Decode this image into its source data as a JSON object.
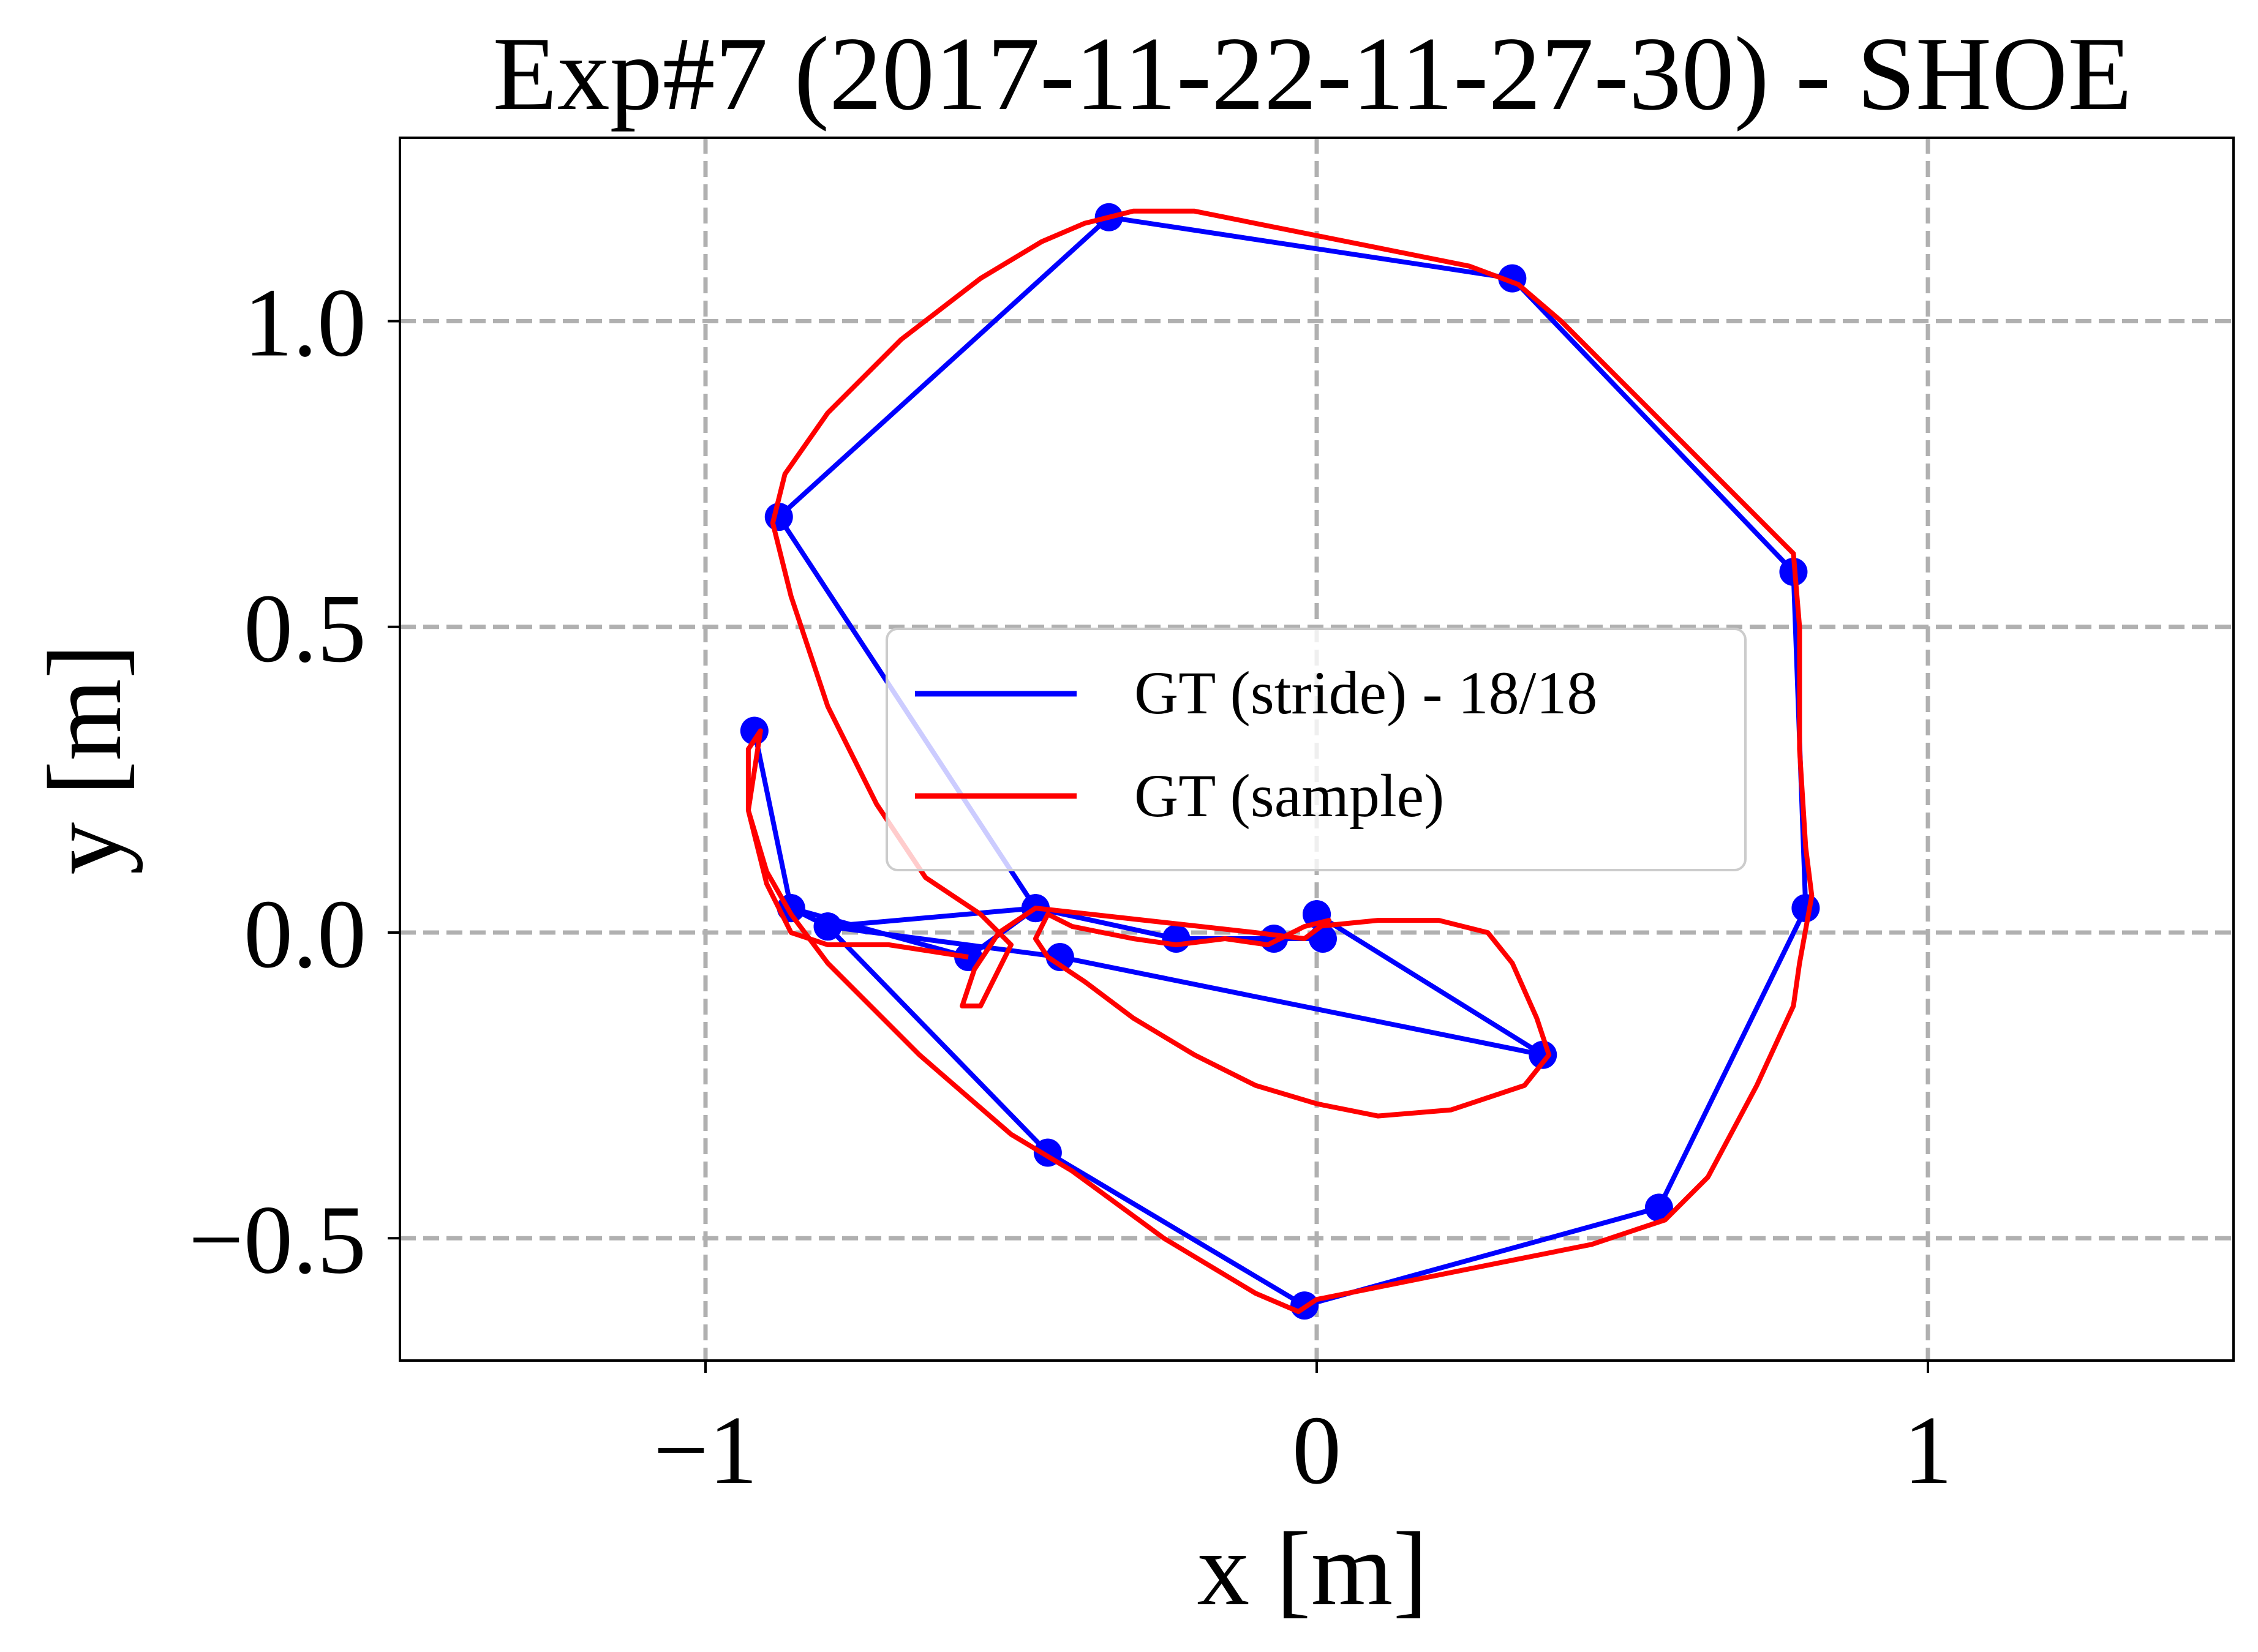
{
  "chart_data": {
    "type": "line",
    "title": "Exp#7 (2017-11-22-11-27-30) - SHOE",
    "xlabel": "x [m]",
    "ylabel": "y [m]",
    "xlim": [
      -1.5,
      1.5
    ],
    "ylim": [
      -0.7,
      1.3
    ],
    "x_ticks": [
      -1,
      0,
      1
    ],
    "x_tick_labels": [
      "−1",
      "0",
      "1"
    ],
    "y_ticks": [
      -0.5,
      0.0,
      0.5,
      1.0
    ],
    "y_tick_labels": [
      "−0.5",
      "0.0",
      "0.5",
      "1.0"
    ],
    "grid": true,
    "legend_position": "center",
    "series": [
      {
        "name": "GT (stride) - 18/18",
        "color": "#0000ff",
        "marker": "circle",
        "points": [
          [
            0.0,
            0.03
          ],
          [
            0.01,
            -0.01
          ],
          [
            -0.07,
            -0.01
          ],
          [
            -0.23,
            -0.01
          ],
          [
            -0.46,
            0.04
          ],
          [
            -0.8,
            0.01
          ],
          [
            -0.86,
            0.04
          ],
          [
            -0.92,
            0.33
          ],
          [
            -0.86,
            0.04
          ],
          [
            -0.57,
            -0.04
          ],
          [
            -0.46,
            0.04
          ],
          [
            -0.88,
            0.68
          ],
          [
            -0.34,
            1.17
          ],
          [
            0.32,
            1.07
          ],
          [
            0.78,
            0.59
          ],
          [
            0.8,
            0.04
          ],
          [
            0.56,
            -0.45
          ],
          [
            -0.02,
            -0.61
          ],
          [
            -0.44,
            -0.36
          ],
          [
            -0.8,
            0.01
          ],
          [
            -0.42,
            -0.04
          ],
          [
            0.37,
            -0.2
          ],
          [
            0.0,
            0.03
          ]
        ]
      },
      {
        "name": "GT (sample)",
        "color": "#ff0000",
        "points": [
          [
            0.0,
            0.01
          ],
          [
            0.1,
            0.02
          ],
          [
            0.2,
            0.02
          ],
          [
            0.28,
            0.0
          ],
          [
            0.32,
            -0.05
          ],
          [
            0.36,
            -0.14
          ],
          [
            0.38,
            -0.2
          ],
          [
            0.34,
            -0.25
          ],
          [
            0.22,
            -0.29
          ],
          [
            0.1,
            -0.3
          ],
          [
            0.0,
            -0.28
          ],
          [
            -0.1,
            -0.25
          ],
          [
            -0.2,
            -0.2
          ],
          [
            -0.3,
            -0.14
          ],
          [
            -0.38,
            -0.08
          ],
          [
            -0.44,
            -0.04
          ],
          [
            -0.46,
            -0.01
          ],
          [
            -0.44,
            0.03
          ],
          [
            -0.4,
            0.01
          ],
          [
            -0.3,
            -0.01
          ],
          [
            -0.23,
            -0.02
          ],
          [
            -0.15,
            -0.01
          ],
          [
            -0.08,
            -0.02
          ],
          [
            -0.02,
            0.01
          ],
          [
            0.02,
            0.02
          ],
          [
            -0.02,
            -0.01
          ],
          [
            -0.1,
            0.0
          ],
          [
            -0.46,
            0.04
          ],
          [
            -0.52,
            0.0
          ],
          [
            -0.56,
            -0.06
          ],
          [
            -0.58,
            -0.12
          ],
          [
            -0.55,
            -0.12
          ],
          [
            -0.5,
            -0.02
          ],
          [
            -0.55,
            0.03
          ],
          [
            -0.64,
            0.09
          ],
          [
            -0.72,
            0.21
          ],
          [
            -0.8,
            0.37
          ],
          [
            -0.86,
            0.55
          ],
          [
            -0.89,
            0.67
          ],
          [
            -0.87,
            0.75
          ],
          [
            -0.8,
            0.85
          ],
          [
            -0.68,
            0.97
          ],
          [
            -0.55,
            1.07
          ],
          [
            -0.45,
            1.13
          ],
          [
            -0.38,
            1.16
          ],
          [
            -0.3,
            1.18
          ],
          [
            -0.2,
            1.18
          ],
          [
            -0.05,
            1.15
          ],
          [
            0.1,
            1.12
          ],
          [
            0.25,
            1.09
          ],
          [
            0.33,
            1.06
          ],
          [
            0.4,
            1.0
          ],
          [
            0.5,
            0.9
          ],
          [
            0.62,
            0.78
          ],
          [
            0.72,
            0.68
          ],
          [
            0.78,
            0.62
          ],
          [
            0.79,
            0.5
          ],
          [
            0.79,
            0.3
          ],
          [
            0.8,
            0.14
          ],
          [
            0.81,
            0.06
          ],
          [
            0.79,
            -0.05
          ],
          [
            0.78,
            -0.12
          ],
          [
            0.72,
            -0.25
          ],
          [
            0.64,
            -0.4
          ],
          [
            0.57,
            -0.47
          ],
          [
            0.45,
            -0.51
          ],
          [
            0.3,
            -0.54
          ],
          [
            0.15,
            -0.57
          ],
          [
            0.0,
            -0.6
          ],
          [
            -0.03,
            -0.62
          ],
          [
            -0.1,
            -0.59
          ],
          [
            -0.25,
            -0.5
          ],
          [
            -0.4,
            -0.39
          ],
          [
            -0.5,
            -0.33
          ],
          [
            -0.65,
            -0.2
          ],
          [
            -0.8,
            -0.05
          ],
          [
            -0.86,
            0.03
          ],
          [
            -0.9,
            0.1
          ],
          [
            -0.93,
            0.2
          ],
          [
            -0.93,
            0.3
          ],
          [
            -0.91,
            0.33
          ],
          [
            -0.93,
            0.2
          ],
          [
            -0.9,
            0.08
          ],
          [
            -0.86,
            0.0
          ],
          [
            -0.8,
            -0.02
          ],
          [
            -0.7,
            -0.02
          ],
          [
            -0.57,
            -0.04
          ]
        ]
      }
    ]
  }
}
